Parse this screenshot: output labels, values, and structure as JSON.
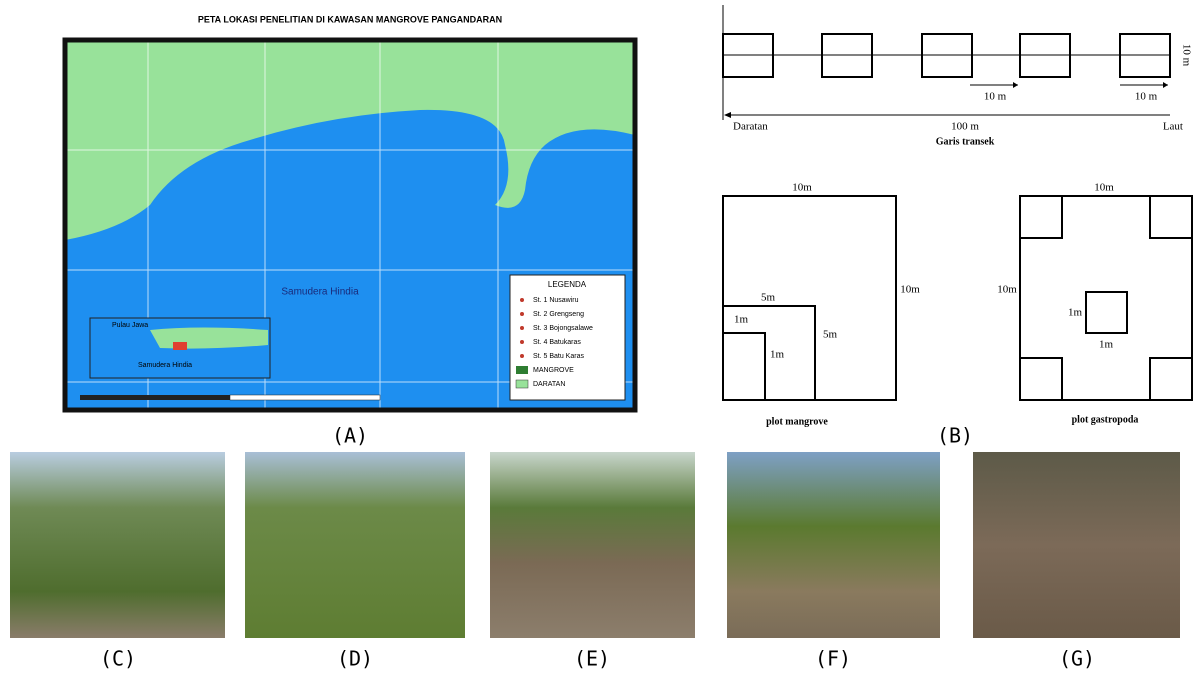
{
  "map": {
    "title": "PETA LOKASI PENELITIAN DI KAWASAN MANGROVE PANGANDARAN",
    "sea_label": "Samudera Hindia",
    "inset": {
      "island_label": "Pulau Jawa",
      "sea_label": "Samudera Hindia"
    },
    "legend": {
      "title": "LEGENDA",
      "items": [
        "St. 1 Nusawiru",
        "St. 2 Grengseng",
        "St. 3 Bojongsalawe",
        "St. 4 Batukaras",
        "St. 5 Batu Karas",
        "MANGROVE",
        "DARATAN"
      ]
    }
  },
  "transect": {
    "height_label": "10 m",
    "segment_labels": [
      "10 m",
      "10 m"
    ],
    "start": "Daratan",
    "length": "100 m",
    "end": "Laut",
    "caption": "Garis transek"
  },
  "plot_mangrove": {
    "top": "10m",
    "right": "10m",
    "mid_top": "5m",
    "mid_right": "5m",
    "small_top": "1m",
    "small_right": "1m",
    "caption": "plot mangrove"
  },
  "plot_gastropoda": {
    "top": "10m",
    "left": "10m",
    "center_left": "1m",
    "center_bottom": "1m",
    "caption": "plot gastropoda"
  },
  "panel_labels": [
    "(A)",
    "(B)",
    "(C)",
    "(D)",
    "(E)",
    "(F)",
    "(G)"
  ]
}
